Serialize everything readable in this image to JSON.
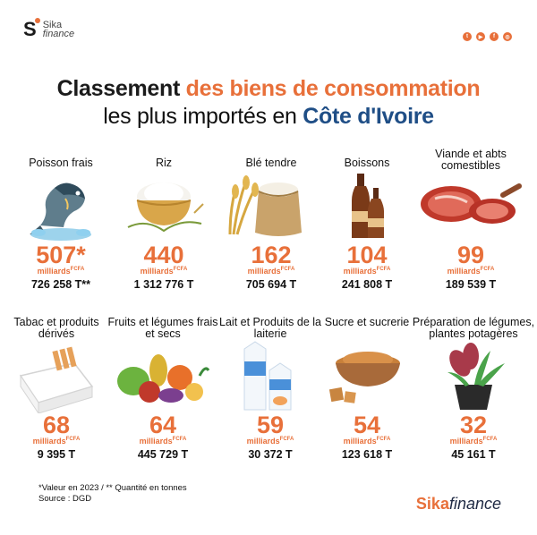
{
  "header": {
    "logo_letter": "S",
    "logo_line1": "Sika",
    "logo_line2": "finance"
  },
  "socials": [
    "twitter-icon",
    "youtube-icon",
    "facebook-icon",
    "instagram-icon"
  ],
  "title": {
    "line1_part1": "Classement",
    "line1_part2": "des biens de consommation",
    "line2_part1": "les plus importés en",
    "line2_part2": "Côte d'Ivoire"
  },
  "unit_label": "milliards",
  "unit_sup": "FCFA",
  "items": [
    {
      "name": "Poisson frais",
      "value": "507*",
      "qty": "726 258 T**",
      "icon": "fish-icon"
    },
    {
      "name": "Riz",
      "value": "440",
      "qty": "1 312 776 T",
      "icon": "rice-bowl-icon"
    },
    {
      "name": "Blé tendre",
      "value": "162",
      "qty": "705 694 T",
      "icon": "wheat-sack-icon"
    },
    {
      "name": "Boissons",
      "value": "104",
      "qty": "241 808 T",
      "icon": "bottles-icon"
    },
    {
      "name": "Viande et abts comestibles",
      "value": "99",
      "qty": "189 539 T",
      "icon": "meat-icon"
    },
    {
      "name": "Tabac et produits dérivés",
      "value": "68",
      "qty": "9 395 T",
      "icon": "cigarette-pack-icon"
    },
    {
      "name": "Fruits et légumes frais et secs",
      "value": "64",
      "qty": "445 729 T",
      "icon": "vegetables-icon"
    },
    {
      "name": "Lait et Produits de la laiterie",
      "value": "59",
      "qty": "30 372 T",
      "icon": "milk-carton-icon"
    },
    {
      "name": "Sucre et sucrerie",
      "value": "54",
      "qty": "123 618 T",
      "icon": "sugar-bowl-icon"
    },
    {
      "name": "Préparation de légumes, plantes potagères",
      "value": "32",
      "qty": "45 161 T",
      "icon": "potted-plant-icon"
    }
  ],
  "footnote": {
    "line1": "*Valeur en 2023 / ** Quantité en tonnes",
    "line2": "Source : DGD"
  },
  "brand": {
    "part1": "Sika",
    "part2": "finance"
  },
  "colors": {
    "accent": "#e8703a",
    "blue": "#1f4e86",
    "dark": "#1b1b1b"
  }
}
